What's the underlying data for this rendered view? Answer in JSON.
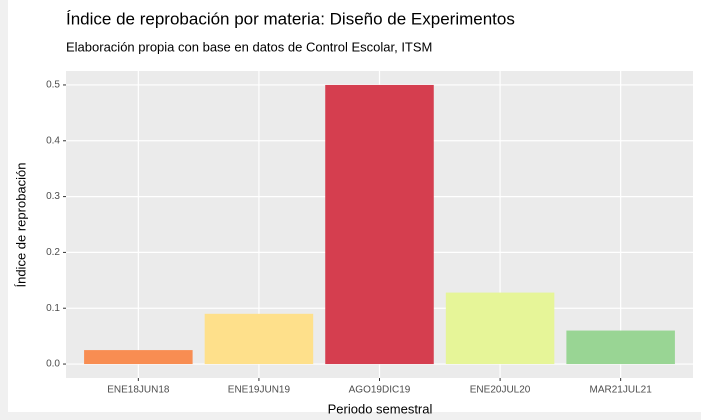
{
  "chart_data": {
    "type": "bar",
    "title": "Índice de reprobación por materia: Diseño de Experimentos",
    "subtitle": "Elaboración propia con base en datos de Control Escolar, ITSM",
    "x_label": "Periodo semestral",
    "y_label": "Índice de reprobación",
    "categories": [
      "ENE18JUN18",
      "ENE19JUN19",
      "AGO19DIC19",
      "ENE20JUL20",
      "MAR21JUL21"
    ],
    "values": [
      0.025,
      0.09,
      0.5,
      0.128,
      0.06
    ],
    "colors": [
      "#f88d52",
      "#fee08b",
      "#d53e4f",
      "#e6f598",
      "#99d594"
    ],
    "ylim": [
      -0.025,
      0.525
    ],
    "yticks": [
      {
        "value": 0,
        "label": "0.0"
      },
      0.1,
      0.2,
      0.3,
      0.4,
      0.5
    ],
    "grid": true
  }
}
